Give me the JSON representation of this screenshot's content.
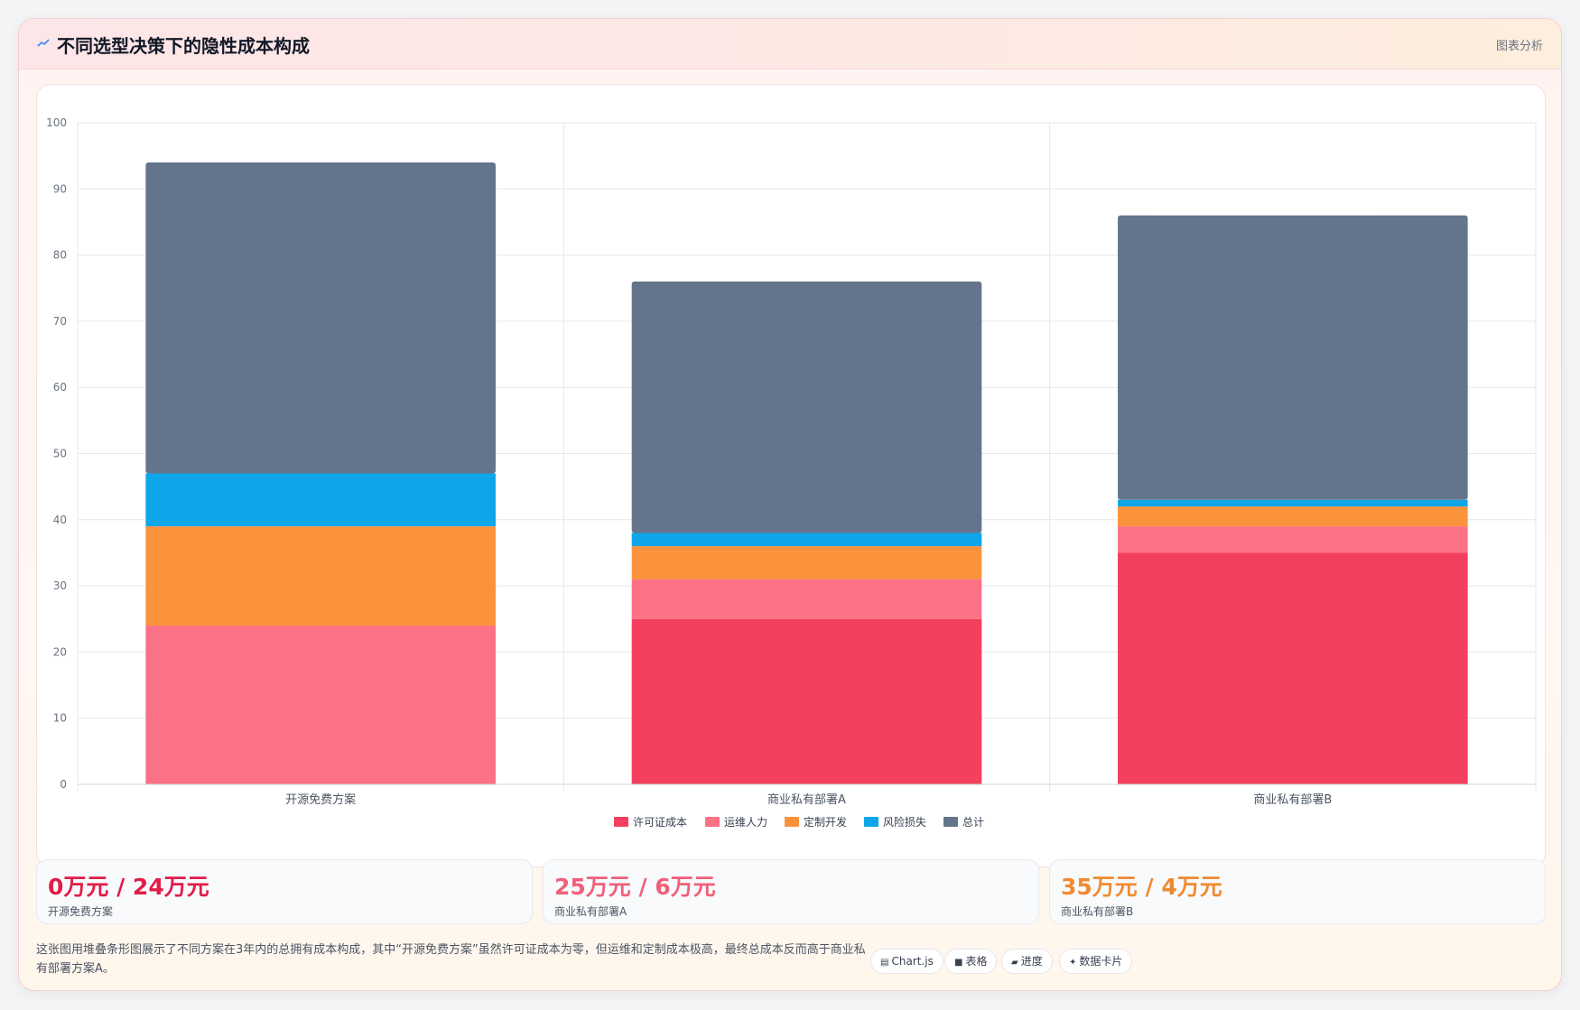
{
  "header": {
    "icon": "chart-line-icon",
    "title": "不同选型决策下的隐性成本构成",
    "right_label": "图表分析"
  },
  "chart_data": {
    "type": "bar",
    "stacked": true,
    "categories": [
      "开源免费方案",
      "商业私有部署A",
      "商业私有部署B"
    ],
    "series": [
      {
        "name": "许可证成本",
        "color": "#f43f5e",
        "values": [
          0,
          25,
          35
        ]
      },
      {
        "name": "运维人力",
        "color": "#fb7185",
        "values": [
          24,
          6,
          4
        ]
      },
      {
        "name": "定制开发",
        "color": "#fb923c",
        "values": [
          15,
          5,
          3
        ]
      },
      {
        "name": "风险损失",
        "color": "#0ea5e9",
        "values": [
          8,
          2,
          1
        ]
      },
      {
        "name": "总计",
        "color": "#64748b",
        "values": [
          47,
          38,
          43
        ]
      }
    ],
    "ylim": [
      0,
      100
    ],
    "yticks": [
      0,
      10,
      20,
      30,
      40,
      50,
      60,
      70,
      80,
      90,
      100
    ],
    "grid": true,
    "legend": "bottom-center",
    "xlabel": "",
    "ylabel": ""
  },
  "stats": [
    {
      "value": "0万元 / 24万元",
      "label": "开源免费方案",
      "color": "#e11d48"
    },
    {
      "value": "25万元 / 6万元",
      "label": "商业私有部署A",
      "color": "#f0607a"
    },
    {
      "value": "35万元 / 4万元",
      "label": "商业私有部署B",
      "color": "#f08a30"
    }
  ],
  "description": "这张图用堆叠条形图展示了不同方案在3年内的总拥有成本构成，其中“开源免费方案”虽然许可证成本为零，但运维和定制成本极高，最终总成本反而高于商业私有部署方案A。",
  "tags": [
    {
      "icon": "table-icon",
      "glyph": "▤",
      "label": "Chart.js"
    },
    {
      "icon": "grid-icon",
      "glyph": "■",
      "label": "表格"
    },
    {
      "icon": "progress-icon",
      "glyph": "▰",
      "label": "进度"
    },
    {
      "icon": "sparkle-icon",
      "glyph": "✦",
      "label": "数据卡片"
    }
  ]
}
